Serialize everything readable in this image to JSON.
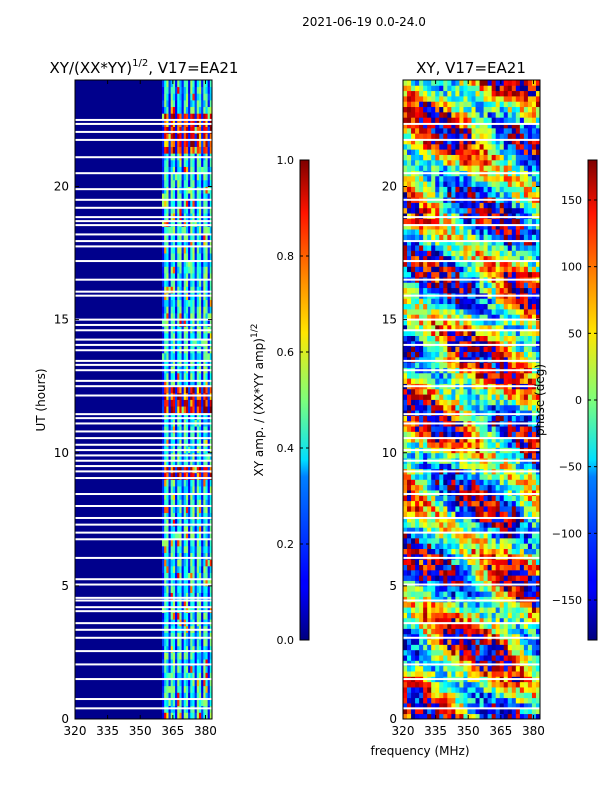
{
  "suptitle": "2021-06-19 0.0-24.0",
  "xlabel": "frequency (MHz)",
  "chart_data": [
    {
      "type": "heatmap",
      "title_main": "XY/(XX*YY)",
      "title_sup": "1/2",
      "title_tail": ", V17=EA21",
      "ylabel": "UT (hours)",
      "xlim": [
        320,
        383
      ],
      "ylim": [
        0,
        24
      ],
      "xticks": [
        {
          "value": 320,
          "label": "320"
        },
        {
          "value": 335,
          "label": "335"
        },
        {
          "value": 350,
          "label": "350"
        },
        {
          "value": 365,
          "label": "365"
        },
        {
          "value": 380,
          "label": "380"
        }
      ],
      "yticks": [
        {
          "value": 0,
          "label": "0"
        },
        {
          "value": 5,
          "label": "5"
        },
        {
          "value": 10,
          "label": "10"
        },
        {
          "value": 15,
          "label": "15"
        },
        {
          "value": 20,
          "label": "20"
        }
      ],
      "colorbar": {
        "colormap": "jet",
        "range": [
          0.0,
          1.0
        ],
        "ticks": [
          {
            "value": 0.0,
            "label": "0.0"
          },
          {
            "value": 0.2,
            "label": "0.2"
          },
          {
            "value": 0.4,
            "label": "0.4"
          },
          {
            "value": 0.6,
            "label": "0.6"
          },
          {
            "value": 0.8,
            "label": "0.8"
          },
          {
            "value": 1.0,
            "label": "1.0"
          }
        ],
        "label_main": "XY amp. / (XX*YY amp)",
        "label_sup": "1/2"
      },
      "mostly_value": 0.05,
      "bright_band_MHz": [
        360,
        383
      ],
      "flagged_hours": [
        0.4,
        0.75,
        1.5,
        2.05,
        2.55,
        3.05,
        3.35,
        3.6,
        4.05,
        4.2,
        4.45,
        4.55,
        5.05,
        5.25,
        6.05,
        6.75,
        7.0,
        7.3,
        7.55,
        8.0,
        8.45,
        9.05,
        9.3,
        9.5,
        9.7,
        9.9,
        10.1,
        10.3,
        10.55,
        10.8,
        11.1,
        11.3,
        11.45,
        12.15,
        12.5,
        12.7,
        13.1,
        13.3,
        13.45,
        13.85,
        14.05,
        14.25,
        14.6,
        14.8,
        15.0,
        15.9,
        16.05,
        16.5,
        17.2,
        17.75,
        17.95,
        18.2,
        18.55,
        18.7,
        18.85,
        19.2,
        19.5,
        19.9,
        20.5,
        21.1,
        21.75,
        22.05,
        22.35,
        22.5
      ]
    },
    {
      "type": "heatmap",
      "title_main": "XY, V17=EA21",
      "xlim": [
        320,
        383
      ],
      "ylim": [
        0,
        24
      ],
      "xticks": [
        {
          "value": 320,
          "label": "320"
        },
        {
          "value": 335,
          "label": "335"
        },
        {
          "value": 350,
          "label": "350"
        },
        {
          "value": 365,
          "label": "365"
        },
        {
          "value": 380,
          "label": "380"
        }
      ],
      "yticks": [
        {
          "value": 0,
          "label": "0"
        },
        {
          "value": 5,
          "label": "5"
        },
        {
          "value": 10,
          "label": "10"
        },
        {
          "value": 15,
          "label": "15"
        },
        {
          "value": 20,
          "label": "20"
        }
      ],
      "colorbar": {
        "colormap": "jet",
        "range": [
          -180,
          180
        ],
        "ticks": [
          {
            "value": -150,
            "label": "−150"
          },
          {
            "value": -100,
            "label": "−100"
          },
          {
            "value": -50,
            "label": "−50"
          },
          {
            "value": 0,
            "label": "0"
          },
          {
            "value": 50,
            "label": "50"
          },
          {
            "value": 100,
            "label": "100"
          },
          {
            "value": 150,
            "label": "150"
          }
        ],
        "label_main": "phase (deg)"
      },
      "flagged_hours": [
        0.4,
        1.5,
        2.05,
        3.05,
        3.6,
        4.45,
        5.05,
        6.05,
        7.0,
        7.55,
        8.45,
        9.3,
        9.7,
        10.1,
        10.55,
        11.1,
        11.45,
        12.5,
        13.1,
        13.45,
        14.05,
        14.6,
        15.0,
        15.9,
        16.5,
        17.2,
        17.95,
        18.55,
        18.85,
        19.5,
        20.5,
        21.75,
        22.35
      ]
    }
  ]
}
